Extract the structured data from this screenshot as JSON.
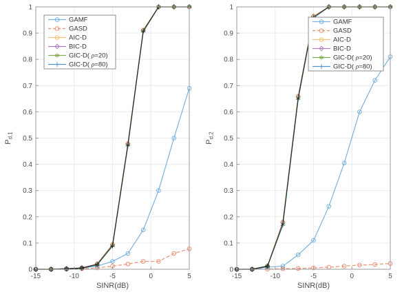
{
  "figure": {
    "background": "#ffffff",
    "frame_color": "#999999",
    "grid_color": "#ececec",
    "tick_label_color": "#4d4d4d",
    "axis_label_color": "#4d4d4d",
    "legend_border_color": "#8c8c8c",
    "legend_text_color": "#333333"
  },
  "chart_data": [
    {
      "type": "line",
      "panel": "left",
      "title": "",
      "xlabel": "SINR(dB)",
      "ylabel_base": "P",
      "ylabel_sub": "d,1",
      "xlim": [
        -15,
        5
      ],
      "ylim": [
        0,
        1
      ],
      "xticks": [
        -15,
        -10,
        -5,
        0,
        5
      ],
      "xtick_labels": [
        "-15",
        "-10",
        "-5",
        "0",
        "5"
      ],
      "yticks": [
        0,
        0.1,
        0.2,
        0.3,
        0.4,
        0.5,
        0.6,
        0.7,
        0.8,
        0.9,
        1
      ],
      "ytick_labels": [
        "0",
        "0.1",
        "0.2",
        "0.3",
        "0.4",
        "0.5",
        "0.6",
        "0.7",
        "0.8",
        "0.9",
        "1"
      ],
      "grid": true,
      "legend_position": "top-left",
      "x": [
        -15,
        -13,
        -11,
        -9,
        -7,
        -5,
        -3,
        -1,
        1,
        3,
        5
      ],
      "series": [
        {
          "name": "GAMF",
          "color": "#7ab3e0",
          "marker": "circle",
          "line": "solid",
          "values": [
            0,
            0,
            0.002,
            0.005,
            0.012,
            0.03,
            0.06,
            0.15,
            0.3,
            0.5,
            0.69
          ]
        },
        {
          "name": "GASD",
          "color": "#ec9173",
          "marker": "circle",
          "line": "dashed",
          "values": [
            0,
            0,
            0,
            0.002,
            0.005,
            0.012,
            0.02,
            0.03,
            0.03,
            0.06,
            0.078
          ]
        },
        {
          "name": "AIC-D",
          "color": "#f2c272",
          "marker": "circle",
          "line": "solid",
          "values": [
            0,
            0,
            0.002,
            0.005,
            0.02,
            0.095,
            0.48,
            0.912,
            1,
            1,
            1
          ]
        },
        {
          "name": "BIC-D",
          "color": "#ad7fc4",
          "marker": "diamond",
          "line": "solid",
          "values": [
            0,
            0,
            0.002,
            0.005,
            0.02,
            0.093,
            0.477,
            0.91,
            1,
            1,
            1
          ]
        },
        {
          "name": "GIC-D( ρ=20)",
          "color": "#82ad53",
          "marker": "star",
          "line": "solid",
          "values": [
            0,
            0,
            0.002,
            0.004,
            0.018,
            0.09,
            0.474,
            0.908,
            1,
            1,
            1
          ]
        },
        {
          "name": "GIC-D( ρ=80)",
          "color": "#4f93d2",
          "marker": "plus",
          "line": "solid",
          "values": [
            0,
            0,
            0.002,
            0.004,
            0.017,
            0.088,
            0.47,
            0.905,
            1,
            1,
            1
          ]
        }
      ]
    },
    {
      "type": "line",
      "panel": "right",
      "title": "",
      "xlabel": "SINR(dB)",
      "ylabel_base": "P",
      "ylabel_sub": "d,2",
      "xlim": [
        -15,
        5
      ],
      "ylim": [
        0,
        1
      ],
      "xticks": [
        -15,
        -10,
        -5,
        0,
        5
      ],
      "xtick_labels": [
        "-15",
        "-10",
        "-5",
        "0",
        "5"
      ],
      "yticks": [
        0,
        0.1,
        0.2,
        0.3,
        0.4,
        0.5,
        0.6,
        0.7,
        0.8,
        0.9,
        1
      ],
      "ytick_labels": [
        "0",
        "0.1",
        "0.2",
        "0.3",
        "0.4",
        "0.5",
        "0.6",
        "0.7",
        "0.8",
        "0.9",
        "1"
      ],
      "grid": true,
      "legend_position": "top-right",
      "x": [
        -15,
        -13,
        -11,
        -9,
        -7,
        -5,
        -3,
        -1,
        1,
        3,
        5
      ],
      "series": [
        {
          "name": "GAMF",
          "color": "#7ab3e0",
          "marker": "circle",
          "line": "solid",
          "values": [
            0,
            0,
            0.008,
            0.012,
            0.055,
            0.11,
            0.24,
            0.405,
            0.6,
            0.72,
            0.81
          ]
        },
        {
          "name": "GASD",
          "color": "#ec9173",
          "marker": "circle",
          "line": "dashed",
          "values": [
            0,
            0,
            0.001,
            0.002,
            0.003,
            0.005,
            0.008,
            0.012,
            0.016,
            0.018,
            0.022
          ]
        },
        {
          "name": "AIC-D",
          "color": "#f2c272",
          "marker": "circle",
          "line": "solid",
          "values": [
            0,
            0,
            0.013,
            0.18,
            0.66,
            0.965,
            1,
            1,
            1,
            1,
            1
          ]
        },
        {
          "name": "BIC-D",
          "color": "#ad7fc4",
          "marker": "diamond",
          "line": "solid",
          "values": [
            0,
            0,
            0.012,
            0.178,
            0.657,
            0.963,
            1,
            1,
            1,
            1,
            1
          ]
        },
        {
          "name": "GIC-D( ρ=20)",
          "color": "#82ad53",
          "marker": "star",
          "line": "solid",
          "values": [
            0,
            0,
            0.012,
            0.172,
            0.652,
            0.96,
            1,
            1,
            1,
            1,
            1
          ]
        },
        {
          "name": "GIC-D( ρ=80)",
          "color": "#4f93d2",
          "marker": "plus",
          "line": "solid",
          "values": [
            0,
            0,
            0.011,
            0.168,
            0.648,
            0.958,
            1,
            1,
            1,
            1,
            1
          ]
        }
      ]
    }
  ]
}
